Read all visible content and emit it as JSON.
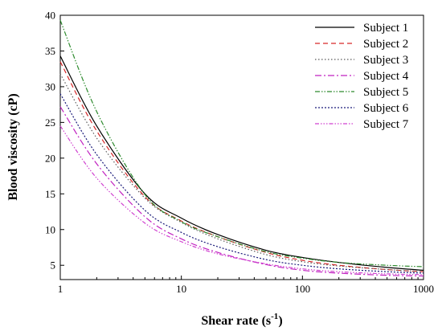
{
  "chart_data": {
    "type": "line",
    "title": "",
    "xlabel": "Shear rate (s",
    "xlabel_sup": "-1",
    "xlabel_end": ")",
    "ylabel": "Blood viscosity (cP)",
    "x_scale": "log",
    "xlim": [
      1,
      1000
    ],
    "ylim": [
      3,
      40
    ],
    "x_ticks": [
      1,
      10,
      100,
      1000
    ],
    "x_tick_labels": [
      "1",
      "10",
      "100",
      "1000"
    ],
    "y_ticks": [
      5,
      10,
      15,
      20,
      25,
      30,
      35,
      40
    ],
    "y_tick_labels": [
      "5",
      "10",
      "15",
      "20",
      "25",
      "30",
      "35",
      "40"
    ],
    "grid": false,
    "legend_position": "top-right",
    "x": [
      1,
      2,
      5,
      10,
      20,
      50,
      100,
      200,
      500,
      1000
    ],
    "series": [
      {
        "name": "Subject 1",
        "color": "#000000",
        "dash": "",
        "values": [
          34.3,
          24.5,
          15.0,
          11.6,
          9.3,
          7.1,
          6.1,
          5.4,
          4.7,
          4.3
        ]
      },
      {
        "name": "Subject 2",
        "color": "#d62728",
        "dash": "6,4",
        "values": [
          33.5,
          23.8,
          14.6,
          11.2,
          9.0,
          6.8,
          5.7,
          5.0,
          4.4,
          4.1
        ]
      },
      {
        "name": "Subject 3",
        "color": "#5a5a5a",
        "dash": "1.5,2.5",
        "values": [
          31.8,
          22.8,
          14.4,
          11.0,
          8.7,
          6.5,
          5.5,
          4.9,
          4.4,
          4.1
        ]
      },
      {
        "name": "Subject 4",
        "color": "#c020c0",
        "dash": "8,3,2,3",
        "values": [
          27.2,
          19.2,
          11.8,
          8.7,
          6.8,
          5.1,
          4.3,
          3.9,
          3.6,
          3.5
        ]
      },
      {
        "name": "Subject 5",
        "color": "#2e8b2e",
        "dash": "6,2,1.5,2,1.5,2",
        "values": [
          39.3,
          26.5,
          14.9,
          11.1,
          9.0,
          6.9,
          6.0,
          5.4,
          5.0,
          4.8
        ]
      },
      {
        "name": "Subject 6",
        "color": "#1a1a7a",
        "dash": "2,2",
        "values": [
          29.0,
          20.5,
          12.7,
          9.6,
          7.6,
          5.8,
          5.0,
          4.5,
          4.1,
          3.9
        ]
      },
      {
        "name": "Subject 7",
        "color": "#d040d0",
        "dash": "5,2,1.5,2,1.5,2,1.5,2",
        "values": [
          24.5,
          17.2,
          10.9,
          8.3,
          6.6,
          5.2,
          4.5,
          4.1,
          3.8,
          3.7
        ]
      }
    ]
  }
}
